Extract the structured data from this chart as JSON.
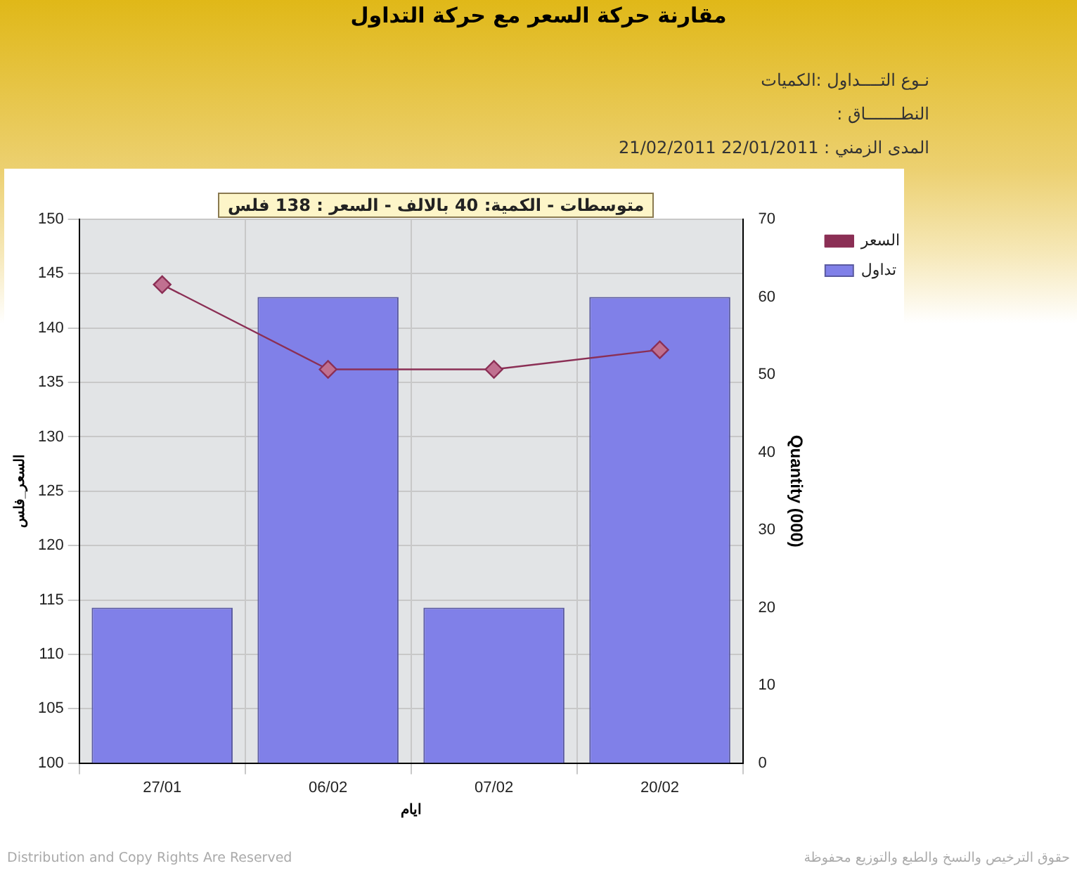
{
  "chart_data": {
    "type": "bar",
    "title": "مقارنة حركة السعر مع حركة التداول",
    "annotations": [
      "نـوع التــــداول :الكميات",
      "النطـــــــاق :",
      "المدى الزمني :   22/01/2011 21/02/2011",
      "متوسطات - الكمية: 40 بالالف  - السعر : 138 فلس",
      "Distribution and Copy Rights Are Reserved",
      "حقوق الترخيص والنسخ والطبع والتوزيع محفوظة"
    ],
    "xlabel": "ايام",
    "ylabel": "السعر_فلس",
    "y2label": "Quantity (000)",
    "categories": [
      "27/01",
      "06/02",
      "07/02",
      "20/02"
    ],
    "series": [
      {
        "name": "تداول",
        "axis": "y2",
        "color": "#8080e8",
        "values": [
          20,
          60,
          20,
          60
        ]
      },
      {
        "name": "السعر",
        "type": "line",
        "axis": "y",
        "color": "#8b2f55",
        "marker": "diamond",
        "values": [
          144,
          136.2,
          136.2,
          138
        ]
      }
    ],
    "ylim": [
      100,
      150
    ],
    "yticks": [
      100,
      105,
      110,
      115,
      120,
      125,
      130,
      135,
      140,
      145,
      150
    ],
    "y2lim": [
      0,
      70
    ],
    "y2ticks": [
      0,
      10,
      20,
      30,
      40,
      50,
      60,
      70
    ],
    "grid": true,
    "legend": "top right"
  }
}
